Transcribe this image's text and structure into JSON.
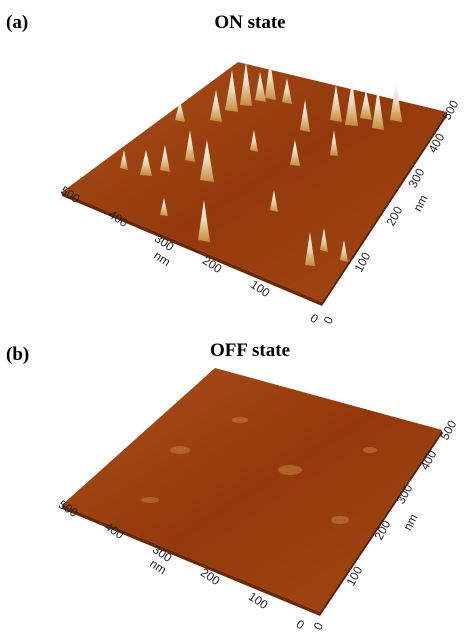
{
  "panels": [
    {
      "label": "(a)",
      "title": "ON state",
      "left_axis": {
        "ticks": [
          "500",
          "400",
          "300",
          "200",
          "100",
          "0"
        ],
        "unit": "nm"
      },
      "right_axis": {
        "ticks": [
          "0",
          "100",
          "200",
          "300",
          "400",
          "500"
        ],
        "unit": "nm"
      }
    },
    {
      "label": "(b)",
      "title": "OFF state",
      "left_axis": {
        "ticks": [
          "500",
          "400",
          "300",
          "200",
          "100",
          "0"
        ],
        "unit": "nm"
      },
      "right_axis": {
        "ticks": [
          "0",
          "100",
          "200",
          "300",
          "400",
          "500"
        ],
        "unit": "nm"
      }
    }
  ]
}
